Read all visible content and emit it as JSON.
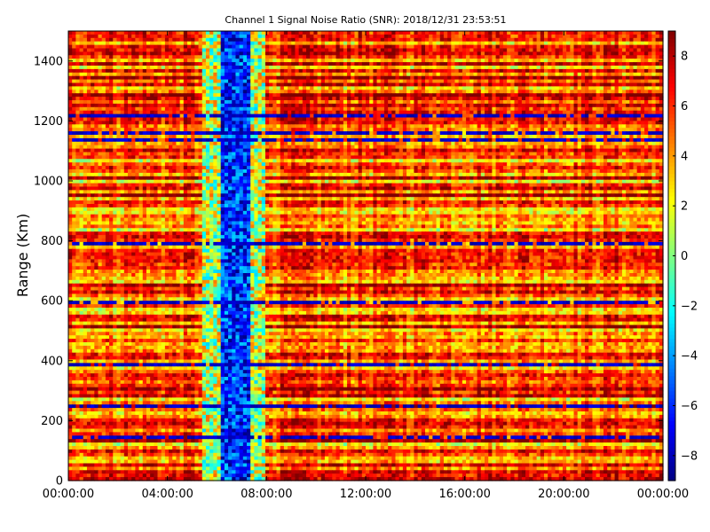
{
  "chart_data": {
    "type": "heatmap",
    "title": "Channel 1 Signal Noise Ratio (SNR): 2018/12/31 23:53:51",
    "xlabel": "",
    "ylabel": "Range (Km)",
    "colormap": "jet",
    "x_tick_labels": [
      "00:00:00",
      "04:00:00",
      "08:00:00",
      "12:00:00",
      "16:00:00",
      "20:00:00",
      "00:00:00"
    ],
    "x_ticks_hours": [
      0,
      4,
      8,
      12,
      16,
      20,
      24
    ],
    "xlim_hours": [
      0,
      24
    ],
    "y_tick_labels": [
      "0",
      "200",
      "400",
      "600",
      "800",
      "1000",
      "1200",
      "1400"
    ],
    "y_ticks": [
      0,
      200,
      400,
      600,
      800,
      1000,
      1200,
      1400
    ],
    "ylim": [
      0,
      1500
    ],
    "colorbar": {
      "range": [
        -9,
        9
      ],
      "tick_labels": [
        "−8",
        "−6",
        "−4",
        "−2",
        "0",
        "2",
        "4",
        "6",
        "8"
      ],
      "ticks": [
        -8,
        -6,
        -4,
        -2,
        0,
        2,
        4,
        6,
        8
      ]
    },
    "low_snr_time_band_hours": [
      5.4,
      7.9
    ],
    "typical_snr_range": [
      2,
      9
    ],
    "grid": false
  }
}
